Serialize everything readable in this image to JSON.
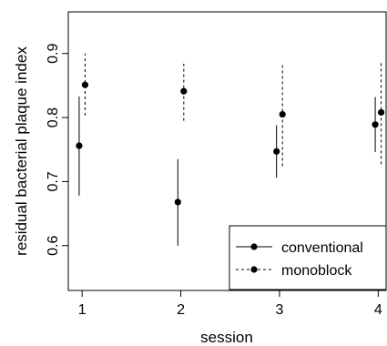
{
  "chart_data": {
    "type": "scatter",
    "xlabel": "session",
    "ylabel": "residual bacterial plaque index",
    "x_ticks": [
      "1",
      "2",
      "3",
      "4"
    ],
    "y_ticks": [
      "0.6",
      "0.7",
      "0.8",
      "0.9"
    ],
    "xlim": [
      0.86,
      4.08
    ],
    "ylim": [
      0.53,
      0.965
    ],
    "legend_position": "bottom-right",
    "series": [
      {
        "name": "conventional",
        "line_style": "solid",
        "color": "#000000",
        "points": [
          {
            "x": 0.97,
            "y": 0.756,
            "low": 0.678,
            "high": 0.833
          },
          {
            "x": 1.97,
            "y": 0.668,
            "low": 0.6,
            "high": 0.735
          },
          {
            "x": 2.97,
            "y": 0.747,
            "low": 0.706,
            "high": 0.788
          },
          {
            "x": 3.97,
            "y": 0.789,
            "low": 0.746,
            "high": 0.832
          }
        ]
      },
      {
        "name": "monoblock",
        "line_style": "dashed",
        "color": "#000000",
        "points": [
          {
            "x": 1.03,
            "y": 0.851,
            "low": 0.803,
            "high": 0.9
          },
          {
            "x": 2.03,
            "y": 0.841,
            "low": 0.795,
            "high": 0.884
          },
          {
            "x": 3.03,
            "y": 0.805,
            "low": 0.724,
            "high": 0.886
          },
          {
            "x": 4.03,
            "y": 0.808,
            "low": 0.727,
            "high": 0.889
          }
        ]
      }
    ]
  }
}
